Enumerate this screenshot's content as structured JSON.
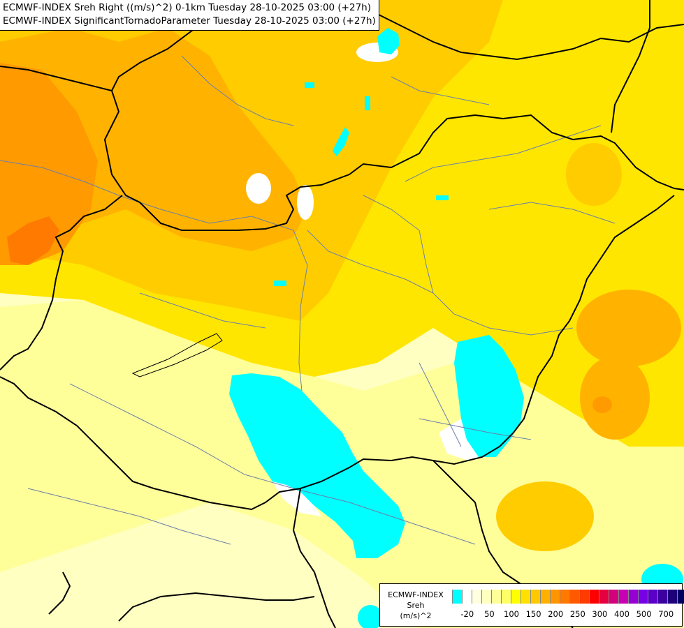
{
  "header": {
    "line1": "ECMWF-INDEX Sreh Right ((m/s)^2) 0-1km Tuesday 28-10-2025 03:00 (+27h)",
    "line2": "ECMWF-INDEX SignificantTornadoParameter Tuesday 28-10-2025 03:00 (+27h)"
  },
  "legend": {
    "title_lines": [
      "ECMWF-INDEX",
      "Sreh",
      "(m/s)^2"
    ],
    "colors": [
      "#00ffff",
      "#ffffff",
      "#ffffe0",
      "#ffffc0",
      "#ffff99",
      "#ffff66",
      "#ffff00",
      "#ffe000",
      "#ffc800",
      "#ffb000",
      "#ff9600",
      "#ff7800",
      "#ff5a00",
      "#ff3c00",
      "#ff0000",
      "#e60040",
      "#d2007d",
      "#c800b4",
      "#9600d2",
      "#7800e6",
      "#5a00c8",
      "#3c00a0",
      "#1e0078",
      "#000064"
    ],
    "ticks": [
      {
        "label": "-20",
        "index": 1
      },
      {
        "label": "50",
        "index": 3
      },
      {
        "label": "100",
        "index": 5
      },
      {
        "label": "150",
        "index": 7
      },
      {
        "label": "200",
        "index": 9
      },
      {
        "label": "250",
        "index": 11
      },
      {
        "label": "300",
        "index": 13
      },
      {
        "label": "400",
        "index": 15
      },
      {
        "label": "500",
        "index": 17
      },
      {
        "label": "700",
        "index": 19
      }
    ]
  },
  "palette": {
    "pale_yellow": "#ffffc2",
    "light_yellow": "#ffff9a",
    "yellow": "#ffe600",
    "gold": "#ffcc00",
    "amber": "#ffb300",
    "orange": "#ff9a00",
    "dark_orange": "#ff7a00",
    "cyan": "#00ffff",
    "white": "#ffffff",
    "border_line": "#000000",
    "river_line": "#6b7fa8"
  }
}
